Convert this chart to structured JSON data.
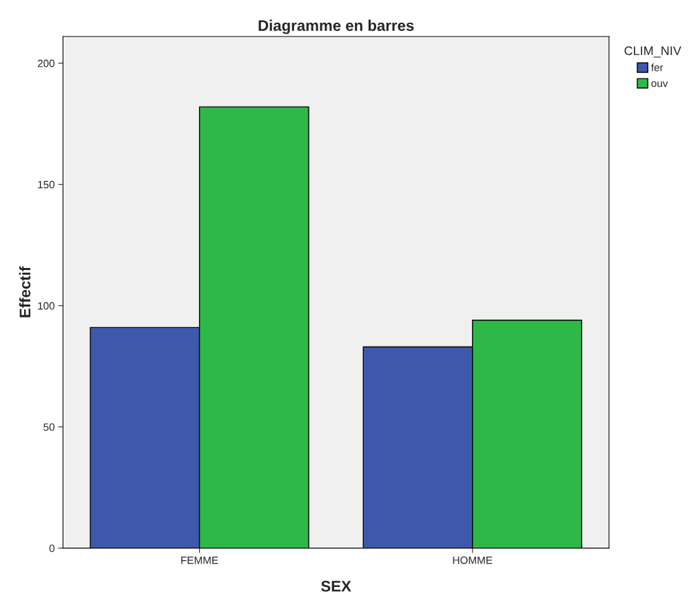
{
  "chart_data": {
    "type": "bar",
    "title": "Diagramme en barres",
    "xlabel": "SEX",
    "ylabel": "Effectif",
    "legend_title": "CLIM_NIV",
    "categories": [
      "FEMME",
      "HOMME"
    ],
    "series": [
      {
        "name": "fer",
        "color": "#3e58ac",
        "values": [
          91,
          83
        ]
      },
      {
        "name": "ouv",
        "color": "#2eb848",
        "values": [
          182,
          94
        ]
      }
    ],
    "ylim": [
      0,
      211
    ],
    "yticks": [
      0,
      50,
      100,
      150,
      200
    ],
    "grid": false,
    "legend": "top right"
  }
}
